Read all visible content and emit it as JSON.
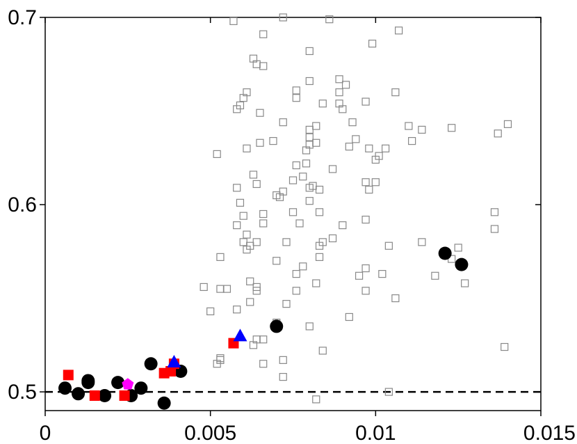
{
  "chart_data": {
    "type": "scatter",
    "title": "",
    "xlabel": "",
    "ylabel": "",
    "xlim": [
      0,
      0.015
    ],
    "ylim": [
      0.49,
      0.7
    ],
    "x_ticks": [
      0,
      0.005,
      0.01,
      0.015
    ],
    "x_tick_labels": [
      "0",
      "0.005",
      "0.01",
      "0.015"
    ],
    "y_ticks": [
      0.5,
      0.6,
      0.7
    ],
    "y_tick_labels": [
      "0.5",
      "0.6",
      "0.7"
    ],
    "grid": false,
    "legend": "none",
    "reference_lines": [
      {
        "orientation": "horizontal",
        "y": 0.5,
        "style": "dashed",
        "color": "#000000"
      }
    ],
    "series": [
      {
        "marker": "open-square",
        "color": "#888888",
        "points": [
          [
            0.0057,
            0.698
          ],
          [
            0.0072,
            0.7
          ],
          [
            0.0086,
            0.699
          ],
          [
            0.0066,
            0.691
          ],
          [
            0.0107,
            0.693
          ],
          [
            0.0099,
            0.686
          ],
          [
            0.008,
            0.682
          ],
          [
            0.0063,
            0.678
          ],
          [
            0.0064,
            0.675
          ],
          [
            0.0066,
            0.674
          ],
          [
            0.008,
            0.666
          ],
          [
            0.0089,
            0.667
          ],
          [
            0.0091,
            0.664
          ],
          [
            0.0076,
            0.661
          ],
          [
            0.0089,
            0.66
          ],
          [
            0.0061,
            0.66
          ],
          [
            0.0106,
            0.66
          ],
          [
            0.006,
            0.657
          ],
          [
            0.0076,
            0.657
          ],
          [
            0.0059,
            0.653
          ],
          [
            0.0084,
            0.654
          ],
          [
            0.0089,
            0.654
          ],
          [
            0.0097,
            0.655
          ],
          [
            0.0058,
            0.651
          ],
          [
            0.009,
            0.651
          ],
          [
            0.0065,
            0.649
          ],
          [
            0.0072,
            0.644
          ],
          [
            0.0093,
            0.644
          ],
          [
            0.008,
            0.64
          ],
          [
            0.0082,
            0.642
          ],
          [
            0.011,
            0.642
          ],
          [
            0.0114,
            0.64
          ],
          [
            0.0123,
            0.641
          ],
          [
            0.014,
            0.643
          ],
          [
            0.0137,
            0.638
          ],
          [
            0.008,
            0.636
          ],
          [
            0.0082,
            0.633
          ],
          [
            0.0094,
            0.635
          ],
          [
            0.0065,
            0.633
          ],
          [
            0.0069,
            0.634
          ],
          [
            0.008,
            0.632
          ],
          [
            0.0092,
            0.631
          ],
          [
            0.0098,
            0.63
          ],
          [
            0.0111,
            0.634
          ],
          [
            0.0061,
            0.63
          ],
          [
            0.0079,
            0.629
          ],
          [
            0.0101,
            0.626
          ],
          [
            0.0052,
            0.627
          ],
          [
            0.0103,
            0.63
          ],
          [
            0.0076,
            0.621
          ],
          [
            0.0079,
            0.622
          ],
          [
            0.0087,
            0.619
          ],
          [
            0.01,
            0.624
          ],
          [
            0.0063,
            0.616
          ],
          [
            0.0075,
            0.613
          ],
          [
            0.0078,
            0.615
          ],
          [
            0.0097,
            0.612
          ],
          [
            0.01,
            0.612
          ],
          [
            0.0064,
            0.611
          ],
          [
            0.008,
            0.609
          ],
          [
            0.0072,
            0.607
          ],
          [
            0.0058,
            0.609
          ],
          [
            0.0081,
            0.61
          ],
          [
            0.0083,
            0.608
          ],
          [
            0.0098,
            0.608
          ],
          [
            0.007,
            0.605
          ],
          [
            0.0071,
            0.604
          ],
          [
            0.0059,
            0.601
          ],
          [
            0.008,
            0.602
          ],
          [
            0.0066,
            0.595
          ],
          [
            0.0075,
            0.596
          ],
          [
            0.006,
            0.594
          ],
          [
            0.0083,
            0.596
          ],
          [
            0.0136,
            0.596
          ],
          [
            0.0077,
            0.59
          ],
          [
            0.0066,
            0.59
          ],
          [
            0.0058,
            0.589
          ],
          [
            0.009,
            0.589
          ],
          [
            0.0097,
            0.592
          ],
          [
            0.0136,
            0.587
          ],
          [
            0.0061,
            0.584
          ],
          [
            0.006,
            0.58
          ],
          [
            0.0064,
            0.58
          ],
          [
            0.0073,
            0.58
          ],
          [
            0.0084,
            0.58
          ],
          [
            0.0087,
            0.582
          ],
          [
            0.0114,
            0.58
          ],
          [
            0.0062,
            0.578
          ],
          [
            0.0083,
            0.578
          ],
          [
            0.0061,
            0.576
          ],
          [
            0.0104,
            0.578
          ],
          [
            0.0125,
            0.577
          ],
          [
            0.0053,
            0.572
          ],
          [
            0.007,
            0.57
          ],
          [
            0.0083,
            0.572
          ],
          [
            0.0123,
            0.571
          ],
          [
            0.0078,
            0.567
          ],
          [
            0.0097,
            0.566
          ],
          [
            0.0076,
            0.563
          ],
          [
            0.0095,
            0.562
          ],
          [
            0.0102,
            0.563
          ],
          [
            0.0118,
            0.562
          ],
          [
            0.0062,
            0.559
          ],
          [
            0.0082,
            0.558
          ],
          [
            0.0127,
            0.558
          ],
          [
            0.0064,
            0.556
          ],
          [
            0.0048,
            0.556
          ],
          [
            0.0053,
            0.555
          ],
          [
            0.0055,
            0.555
          ],
          [
            0.0064,
            0.554
          ],
          [
            0.0076,
            0.554
          ],
          [
            0.0097,
            0.554
          ],
          [
            0.0106,
            0.55
          ],
          [
            0.0062,
            0.548
          ],
          [
            0.0073,
            0.547
          ],
          [
            0.005,
            0.543
          ],
          [
            0.0058,
            0.544
          ],
          [
            0.0092,
            0.54
          ],
          [
            0.007,
            0.537
          ],
          [
            0.008,
            0.535
          ],
          [
            0.0064,
            0.528
          ],
          [
            0.0066,
            0.528
          ],
          [
            0.0063,
            0.525
          ],
          [
            0.0084,
            0.522
          ],
          [
            0.0139,
            0.524
          ],
          [
            0.0053,
            0.517
          ],
          [
            0.0053,
            0.518
          ],
          [
            0.0052,
            0.515
          ],
          [
            0.0066,
            0.515
          ],
          [
            0.0072,
            0.517
          ],
          [
            0.0072,
            0.508
          ],
          [
            0.0104,
            0.5
          ],
          [
            0.0082,
            0.496
          ]
        ]
      },
      {
        "marker": "filled-circle",
        "color": "#000000",
        "points": [
          [
            0.0006,
            0.502
          ],
          [
            0.001,
            0.499
          ],
          [
            0.0013,
            0.505
          ],
          [
            0.0013,
            0.506
          ],
          [
            0.0018,
            0.498
          ],
          [
            0.0022,
            0.505
          ],
          [
            0.0026,
            0.498
          ],
          [
            0.0029,
            0.502
          ],
          [
            0.0032,
            0.515
          ],
          [
            0.0036,
            0.494
          ],
          [
            0.0041,
            0.511
          ],
          [
            0.007,
            0.535
          ],
          [
            0.0121,
            0.574
          ],
          [
            0.0126,
            0.568
          ]
        ]
      },
      {
        "marker": "filled-square",
        "color": "#ff0000",
        "points": [
          [
            0.0007,
            0.509
          ],
          [
            0.0015,
            0.498
          ],
          [
            0.0024,
            0.498
          ],
          [
            0.0036,
            0.51
          ],
          [
            0.0038,
            0.511
          ],
          [
            0.0039,
            0.515
          ],
          [
            0.0057,
            0.526
          ]
        ]
      },
      {
        "marker": "filled-triangle",
        "color": "#0000ff",
        "points": [
          [
            0.0039,
            0.516
          ],
          [
            0.0059,
            0.53
          ]
        ]
      },
      {
        "marker": "filled-pentagon",
        "color": "#ff00ff",
        "points": [
          [
            0.0025,
            0.504
          ]
        ]
      }
    ]
  }
}
